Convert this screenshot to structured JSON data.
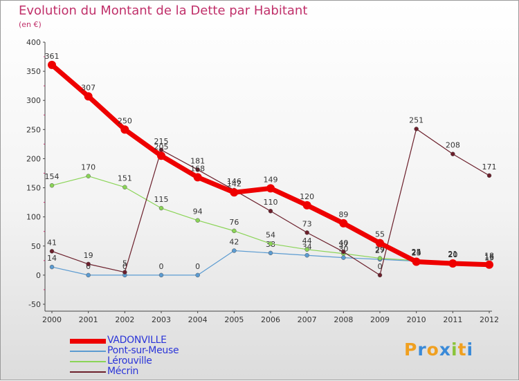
{
  "title": "Evolution du Montant de la Dette par Habitant",
  "subtitle": "(en €)",
  "logo": {
    "text": "Proxiti",
    "colors": [
      "#f0a020",
      "#3a8ad8",
      "#f0a020",
      "#3a8ad8",
      "#8ac43a",
      "#f0a020",
      "#3a8ad8"
    ]
  },
  "chart_data": {
    "type": "line",
    "title": "Evolution du Montant de la Dette par Habitant",
    "subtitle": "(en €)",
    "xlabel": "",
    "ylabel": "",
    "ylim": [
      -50,
      400
    ],
    "yticks": [
      -50,
      0,
      50,
      100,
      150,
      200,
      250,
      300,
      350,
      400
    ],
    "grid": false,
    "legend_position": "bottom-left",
    "x": [
      "2000",
      "2001",
      "2002",
      "2003",
      "2004",
      "2005",
      "2006",
      "2007",
      "2008",
      "2009",
      "2010",
      "2011",
      "2012"
    ],
    "series": [
      {
        "name": "VADONVILLE",
        "color": "#ee0000",
        "values": [
          361,
          307,
          250,
          205,
          168,
          142,
          149,
          120,
          89,
          55,
          23,
          20,
          18
        ]
      },
      {
        "name": "Pont-sur-Meuse",
        "color": "#5b9bd1",
        "values": [
          14,
          0,
          0,
          0,
          0,
          42,
          38,
          34,
          30,
          27,
          24,
          20,
          15
        ]
      },
      {
        "name": "Lérouville",
        "color": "#8ad456",
        "values": [
          154,
          170,
          151,
          115,
          94,
          76,
          54,
          44,
          37,
          29,
          25,
          21,
          16
        ]
      },
      {
        "name": "Mécrin",
        "color": "#6b1f2b",
        "values": [
          41,
          19,
          5,
          215,
          181,
          146,
          110,
          73,
          40,
          0,
          251,
          208,
          171
        ]
      }
    ]
  }
}
